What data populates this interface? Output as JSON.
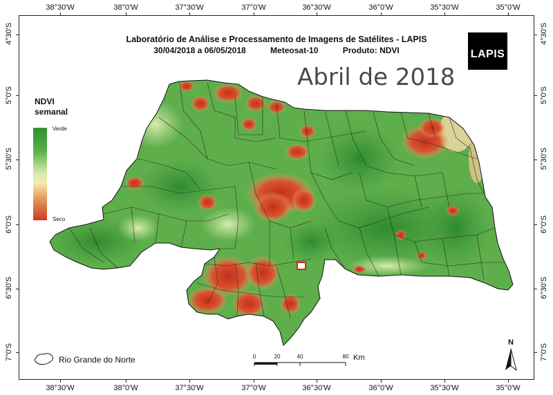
{
  "header": {
    "line1": "Laboratório de Análise e Processamento de Imagens de Satélites - LAPIS",
    "period": "30/04/2018  a 06/05/2018",
    "satellite": "Meteosat-10",
    "product": "Produto: NDVI"
  },
  "big_title": "Abril de 2018",
  "logo_text": "LAPIS",
  "legend": {
    "title_line1": "NDVI",
    "title_line2": "semanal",
    "high_label": "Verde",
    "low_label": "Seco",
    "colors": [
      "#2f8f2f",
      "#5ab04a",
      "#d9edb0",
      "#f5e9b0",
      "#e8a060",
      "#c83c22"
    ]
  },
  "region_label": "Rio Grande do Norte",
  "scale_bar": {
    "ticks": [
      "0",
      "20",
      "40",
      "80"
    ],
    "unit": "Km"
  },
  "north_label": "N",
  "longitude_ticks": [
    "38°30'W",
    "38°0'W",
    "37°30'W",
    "37°0'W",
    "36°30'W",
    "36°0'W",
    "35°30'W",
    "35°0'W"
  ],
  "latitude_ticks": [
    "4°30'S",
    "5°0'S",
    "5°30'S",
    "6°0'S",
    "6°30'S",
    "7°0'S"
  ]
}
